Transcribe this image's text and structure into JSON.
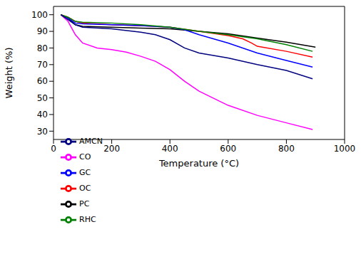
{
  "chart_data": {
    "type": "line",
    "x_label": "Temperature (°C)",
    "y_label": "Weight (%)",
    "xlim": [
      0,
      1000
    ],
    "xticks": [
      0,
      200,
      400,
      600,
      800,
      1000
    ],
    "ylim": [
      25,
      105
    ],
    "yticks": [
      30,
      40,
      50,
      60,
      70,
      80,
      90,
      100
    ],
    "grid": false,
    "legend": "lower left",
    "series": [
      {
        "name": "PC",
        "color": "#000000",
        "x": [
          25,
          50,
          75,
          100,
          200,
          300,
          400,
          500,
          600,
          700,
          800,
          900
        ],
        "values": [
          100,
          98,
          94,
          93,
          92.5,
          92,
          91.5,
          90,
          88.5,
          86,
          83.5,
          80.5
        ]
      },
      {
        "name": "OC",
        "color": "#ff0000",
        "x": [
          25,
          50,
          75,
          100,
          200,
          300,
          400,
          500,
          600,
          650,
          680,
          700,
          800,
          890
        ],
        "values": [
          100,
          98.5,
          96,
          95,
          94,
          93.5,
          92.5,
          90,
          87.5,
          85.5,
          83,
          81,
          78,
          74.5
        ]
      },
      {
        "name": "GC",
        "color": "#0000ff",
        "x": [
          25,
          50,
          75,
          100,
          200,
          300,
          400,
          450,
          500,
          600,
          700,
          800,
          890
        ],
        "values": [
          100,
          98,
          95,
          94.5,
          94,
          93.5,
          92.5,
          91,
          88,
          83,
          77,
          72.5,
          68.5
        ]
      },
      {
        "name": "CO",
        "color": "#ff00ff",
        "x": [
          25,
          50,
          75,
          100,
          150,
          200,
          250,
          300,
          350,
          400,
          450,
          500,
          600,
          700,
          800,
          890
        ],
        "values": [
          100,
          96,
          88,
          83,
          80,
          79,
          77.5,
          75,
          72,
          67,
          60,
          54,
          45.5,
          39.5,
          35,
          31
        ]
      },
      {
        "name": "RHC",
        "color": "#008000",
        "x": [
          25,
          50,
          75,
          100,
          200,
          300,
          400,
          500,
          600,
          700,
          800,
          890
        ],
        "values": [
          100,
          98.5,
          96,
          95.5,
          95,
          94,
          92.5,
          90,
          88,
          85.5,
          82,
          78
        ]
      },
      {
        "name": "AMCN",
        "color": "#000080",
        "x": [
          25,
          50,
          75,
          100,
          200,
          300,
          350,
          400,
          450,
          500,
          600,
          700,
          800,
          890
        ],
        "values": [
          100,
          97,
          94,
          92.5,
          91.5,
          89.5,
          88,
          85,
          80,
          77,
          74,
          70,
          66.5,
          61.5
        ]
      }
    ]
  }
}
